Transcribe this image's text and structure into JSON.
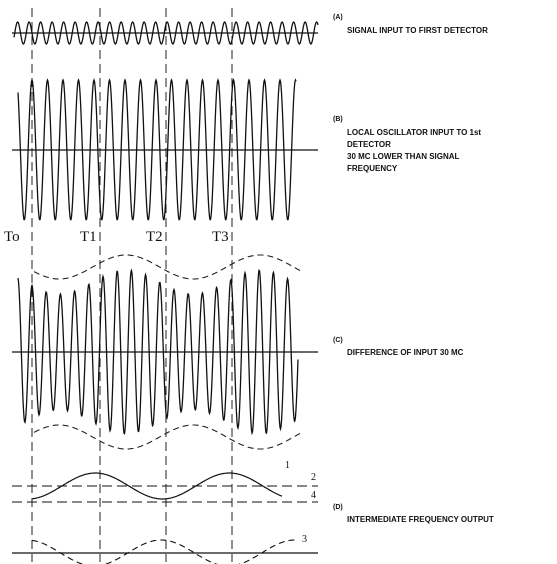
{
  "panels": {
    "a": {
      "tag": "(A)",
      "lines": [
        "SIGNAL  INPUT  TO FIRST DETECTOR"
      ]
    },
    "b": {
      "tag": "(B)",
      "lines": [
        "LOCAL OSCILLATOR INPUT TO 1st",
        "DETECTOR",
        "30 MC LOWER THAN SIGNAL",
        "FREQUENCY"
      ]
    },
    "c": {
      "tag": "(C)",
      "lines": [
        "DIFFERENCE OF INPUT   30 MC"
      ]
    },
    "d": {
      "tag": "(D)",
      "lines": [
        "INTERMEDIATE  FREQUENCY OUTPUT"
      ]
    }
  },
  "time_markers": [
    "To",
    "T1",
    "T2",
    "T3"
  ],
  "curve_numbers": [
    "1",
    "2",
    "3",
    "4"
  ]
}
